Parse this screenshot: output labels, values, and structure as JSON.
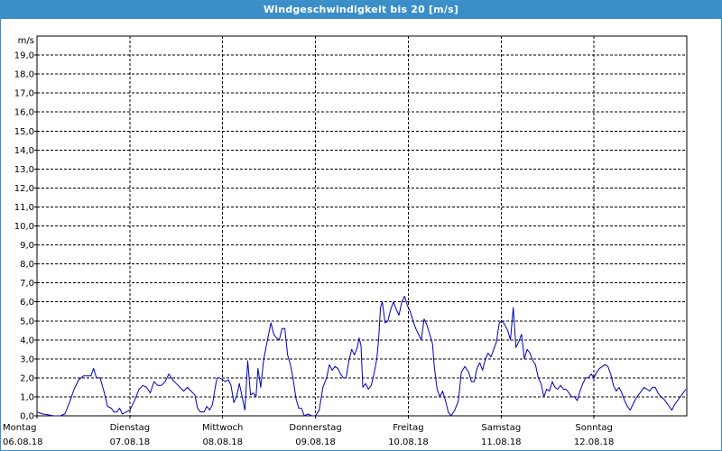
{
  "window": {
    "title": "Windgeschwindigkeit bis 20 [m/s]"
  },
  "chart_data": {
    "type": "line",
    "title": "Windgeschwindigkeit bis 20 [m/s]",
    "ylabel": "m/s",
    "ylim": [
      0,
      20
    ],
    "grid": true,
    "line_color": "#0000b4",
    "yticks": [
      "0,0",
      "1,0",
      "2,0",
      "3,0",
      "4,0",
      "5,0",
      "6,0",
      "7,0",
      "8,0",
      "9,0",
      "10,0",
      "11,0",
      "12,0",
      "13,0",
      "14,0",
      "15,0",
      "16,0",
      "17,0",
      "18,0",
      "19,0"
    ],
    "days": [
      {
        "name": "Montag",
        "date": "06.08.18"
      },
      {
        "name": "Dienstag",
        "date": "07.08.18"
      },
      {
        "name": "Mittwoch",
        "date": "08.08.18"
      },
      {
        "name": "Donnerstag",
        "date": "09.08.18"
      },
      {
        "name": "Freitag",
        "date": "10.08.18"
      },
      {
        "name": "Samstag",
        "date": "11.08.18"
      },
      {
        "name": "Sonntag",
        "date": "12.08.18"
      }
    ],
    "xlim_days": [
      0,
      7
    ],
    "series": [
      {
        "points": [
          [
            0.0,
            0.2
          ],
          [
            0.06,
            0.1
          ],
          [
            0.12,
            0.05
          ],
          [
            0.18,
            0.0
          ],
          [
            0.25,
            0.0
          ],
          [
            0.3,
            0.1
          ],
          [
            0.35,
            0.7
          ],
          [
            0.4,
            1.4
          ],
          [
            0.45,
            1.9
          ],
          [
            0.5,
            2.1
          ],
          [
            0.55,
            2.1
          ],
          [
            0.58,
            2.1
          ],
          [
            0.61,
            2.5
          ],
          [
            0.64,
            2.0
          ],
          [
            0.68,
            2.0
          ],
          [
            0.72,
            1.3
          ],
          [
            0.76,
            0.5
          ],
          [
            0.8,
            0.4
          ],
          [
            0.83,
            0.2
          ],
          [
            0.86,
            0.2
          ],
          [
            0.89,
            0.4
          ],
          [
            0.92,
            0.1
          ],
          [
            0.96,
            0.2
          ],
          [
            1.0,
            0.3
          ],
          [
            1.05,
            0.8
          ],
          [
            1.1,
            1.4
          ],
          [
            1.14,
            1.6
          ],
          [
            1.18,
            1.5
          ],
          [
            1.22,
            1.2
          ],
          [
            1.26,
            1.8
          ],
          [
            1.3,
            1.6
          ],
          [
            1.34,
            1.6
          ],
          [
            1.38,
            1.8
          ],
          [
            1.42,
            2.2
          ],
          [
            1.46,
            1.9
          ],
          [
            1.5,
            1.7
          ],
          [
            1.54,
            1.5
          ],
          [
            1.58,
            1.3
          ],
          [
            1.62,
            1.5
          ],
          [
            1.66,
            1.3
          ],
          [
            1.7,
            1.1
          ],
          [
            1.73,
            0.4
          ],
          [
            1.76,
            0.2
          ],
          [
            1.8,
            0.2
          ],
          [
            1.83,
            0.5
          ],
          [
            1.86,
            0.3
          ],
          [
            1.89,
            0.6
          ],
          [
            1.92,
            1.5
          ],
          [
            1.94,
            2.0
          ],
          [
            1.97,
            2.0
          ],
          [
            2.0,
            1.9
          ],
          [
            2.03,
            1.8
          ],
          [
            2.06,
            1.9
          ],
          [
            2.09,
            1.6
          ],
          [
            2.12,
            0.7
          ],
          [
            2.15,
            1.0
          ],
          [
            2.18,
            1.7
          ],
          [
            2.21,
            1.0
          ],
          [
            2.24,
            0.3
          ],
          [
            2.27,
            2.9
          ],
          [
            2.3,
            1.1
          ],
          [
            2.33,
            1.2
          ],
          [
            2.36,
            1.0
          ],
          [
            2.38,
            2.5
          ],
          [
            2.41,
            1.5
          ],
          [
            2.44,
            2.9
          ],
          [
            2.47,
            3.7
          ],
          [
            2.5,
            4.4
          ],
          [
            2.52,
            4.9
          ],
          [
            2.55,
            4.3
          ],
          [
            2.58,
            4.1
          ],
          [
            2.61,
            4.0
          ],
          [
            2.64,
            4.6
          ],
          [
            2.67,
            4.6
          ],
          [
            2.7,
            3.2
          ],
          [
            2.73,
            2.7
          ],
          [
            2.76,
            1.9
          ],
          [
            2.79,
            0.9
          ],
          [
            2.82,
            0.4
          ],
          [
            2.85,
            0.4
          ],
          [
            2.88,
            0.0
          ],
          [
            2.92,
            0.1
          ],
          [
            2.96,
            0.0
          ],
          [
            3.0,
            0.0
          ],
          [
            3.04,
            0.3
          ],
          [
            3.08,
            1.5
          ],
          [
            3.12,
            2.0
          ],
          [
            3.15,
            2.7
          ],
          [
            3.18,
            2.4
          ],
          [
            3.21,
            2.6
          ],
          [
            3.24,
            2.5
          ],
          [
            3.27,
            2.2
          ],
          [
            3.3,
            2.0
          ],
          [
            3.33,
            2.0
          ],
          [
            3.36,
            2.9
          ],
          [
            3.39,
            3.5
          ],
          [
            3.42,
            3.2
          ],
          [
            3.45,
            3.6
          ],
          [
            3.47,
            4.1
          ],
          [
            3.49,
            3.7
          ],
          [
            3.51,
            1.5
          ],
          [
            3.54,
            1.7
          ],
          [
            3.57,
            1.4
          ],
          [
            3.6,
            1.6
          ],
          [
            3.63,
            2.2
          ],
          [
            3.66,
            3.0
          ],
          [
            3.68,
            4.0
          ],
          [
            3.7,
            5.7
          ],
          [
            3.72,
            6.0
          ],
          [
            3.75,
            4.9
          ],
          [
            3.78,
            5.0
          ],
          [
            3.81,
            5.6
          ],
          [
            3.84,
            6.0
          ],
          [
            3.87,
            5.6
          ],
          [
            3.9,
            5.3
          ],
          [
            3.93,
            6.0
          ],
          [
            3.96,
            6.3
          ],
          [
            3.99,
            5.8
          ],
          [
            4.02,
            5.5
          ],
          [
            4.05,
            5.0
          ],
          [
            4.08,
            4.6
          ],
          [
            4.11,
            4.3
          ],
          [
            4.14,
            4.0
          ],
          [
            4.17,
            5.1
          ],
          [
            4.2,
            4.8
          ],
          [
            4.23,
            4.3
          ],
          [
            4.26,
            3.8
          ],
          [
            4.28,
            2.6
          ],
          [
            4.31,
            1.4
          ],
          [
            4.34,
            1.0
          ],
          [
            4.37,
            1.3
          ],
          [
            4.4,
            0.8
          ],
          [
            4.43,
            0.2
          ],
          [
            4.46,
            0.0
          ],
          [
            4.5,
            0.3
          ],
          [
            4.54,
            0.8
          ],
          [
            4.57,
            2.3
          ],
          [
            4.61,
            2.6
          ],
          [
            4.65,
            2.3
          ],
          [
            4.68,
            1.8
          ],
          [
            4.71,
            1.8
          ],
          [
            4.74,
            2.5
          ],
          [
            4.77,
            2.8
          ],
          [
            4.8,
            2.4
          ],
          [
            4.83,
            3.0
          ],
          [
            4.86,
            3.3
          ],
          [
            4.89,
            3.1
          ],
          [
            4.92,
            3.5
          ],
          [
            4.95,
            3.9
          ],
          [
            4.98,
            4.9
          ],
          [
            5.01,
            5.0
          ],
          [
            5.04,
            4.8
          ],
          [
            5.07,
            4.5
          ],
          [
            5.1,
            4.0
          ],
          [
            5.13,
            5.7
          ],
          [
            5.16,
            3.6
          ],
          [
            5.19,
            3.9
          ],
          [
            5.22,
            4.3
          ],
          [
            5.25,
            3.0
          ],
          [
            5.28,
            3.5
          ],
          [
            5.31,
            3.3
          ],
          [
            5.34,
            2.9
          ],
          [
            5.37,
            2.7
          ],
          [
            5.4,
            2.0
          ],
          [
            5.43,
            1.7
          ],
          [
            5.46,
            1.0
          ],
          [
            5.49,
            1.4
          ],
          [
            5.52,
            1.3
          ],
          [
            5.55,
            1.8
          ],
          [
            5.58,
            1.5
          ],
          [
            5.61,
            1.4
          ],
          [
            5.64,
            1.6
          ],
          [
            5.67,
            1.4
          ],
          [
            5.7,
            1.4
          ],
          [
            5.73,
            1.2
          ],
          [
            5.76,
            1.0
          ],
          [
            5.79,
            1.0
          ],
          [
            5.82,
            0.8
          ],
          [
            5.85,
            1.3
          ],
          [
            5.88,
            1.7
          ],
          [
            5.91,
            2.0
          ],
          [
            5.94,
            2.0
          ],
          [
            5.97,
            2.2
          ],
          [
            6.0,
            2.0
          ],
          [
            6.03,
            2.3
          ],
          [
            6.06,
            2.5
          ],
          [
            6.09,
            2.6
          ],
          [
            6.12,
            2.7
          ],
          [
            6.15,
            2.6
          ],
          [
            6.18,
            2.2
          ],
          [
            6.21,
            1.6
          ],
          [
            6.24,
            1.3
          ],
          [
            6.27,
            1.5
          ],
          [
            6.3,
            1.2
          ],
          [
            6.33,
            0.8
          ],
          [
            6.36,
            0.5
          ],
          [
            6.39,
            0.3
          ],
          [
            6.42,
            0.6
          ],
          [
            6.45,
            0.9
          ],
          [
            6.48,
            1.1
          ],
          [
            6.51,
            1.3
          ],
          [
            6.54,
            1.5
          ],
          [
            6.57,
            1.4
          ],
          [
            6.6,
            1.3
          ],
          [
            6.63,
            1.5
          ],
          [
            6.66,
            1.5
          ],
          [
            6.69,
            1.2
          ],
          [
            6.72,
            1.0
          ],
          [
            6.75,
            0.9
          ],
          [
            6.78,
            0.7
          ],
          [
            6.81,
            0.5
          ],
          [
            6.84,
            0.3
          ],
          [
            6.87,
            0.6
          ],
          [
            6.9,
            0.8
          ],
          [
            6.93,
            1.0
          ],
          [
            6.96,
            1.2
          ],
          [
            6.99,
            1.4
          ]
        ]
      }
    ]
  }
}
